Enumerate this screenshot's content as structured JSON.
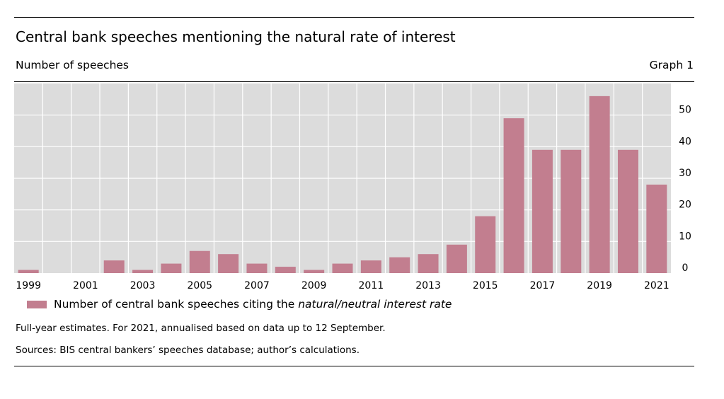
{
  "header": {
    "title": "Central bank speeches mentioning the natural rate of interest",
    "unit_label": "Number of speeches",
    "graph_number": "Graph 1"
  },
  "legend": {
    "label_prefix": "Number of central bank speeches citing the ",
    "label_italic": "natural/neutral interest rate"
  },
  "notes": {
    "footnote": "Full-year estimates. For 2021, annualised based on data up to 12 September.",
    "sources": "Sources: BIS central bankers’ speeches database; author’s calculations."
  },
  "colors": {
    "bar": "#c27e8f",
    "plot_bg": "#dcdcdc",
    "grid": "#ffffff"
  },
  "chart_data": {
    "type": "bar",
    "title": "Central bank speeches mentioning the natural rate of interest",
    "ylabel": "Number of speeches",
    "xlabel": "",
    "categories": [
      "1999",
      "2000",
      "2001",
      "2002",
      "2003",
      "2004",
      "2005",
      "2006",
      "2007",
      "2008",
      "2009",
      "2010",
      "2011",
      "2012",
      "2013",
      "2014",
      "2015",
      "2016",
      "2017",
      "2018",
      "2019",
      "2020",
      "2021"
    ],
    "values": [
      1,
      0,
      0,
      4,
      1,
      3,
      7,
      6,
      3,
      2,
      1,
      3,
      4,
      5,
      6,
      9,
      18,
      49,
      39,
      39,
      56,
      39,
      28
    ],
    "x_tick_labels": [
      "1999",
      "2001",
      "2003",
      "2005",
      "2007",
      "2009",
      "2011",
      "2013",
      "2015",
      "2017",
      "2019",
      "2021"
    ],
    "y_ticks": [
      0,
      10,
      20,
      30,
      40,
      50
    ],
    "ylim": [
      0,
      60
    ],
    "y_axis_side": "right",
    "grid": true,
    "legend_position": "bottom-left",
    "series": [
      {
        "name": "Number of central bank speeches citing the natural/neutral interest rate",
        "values": [
          1,
          0,
          0,
          4,
          1,
          3,
          7,
          6,
          3,
          2,
          1,
          3,
          4,
          5,
          6,
          9,
          18,
          49,
          39,
          39,
          56,
          39,
          28
        ]
      }
    ]
  }
}
